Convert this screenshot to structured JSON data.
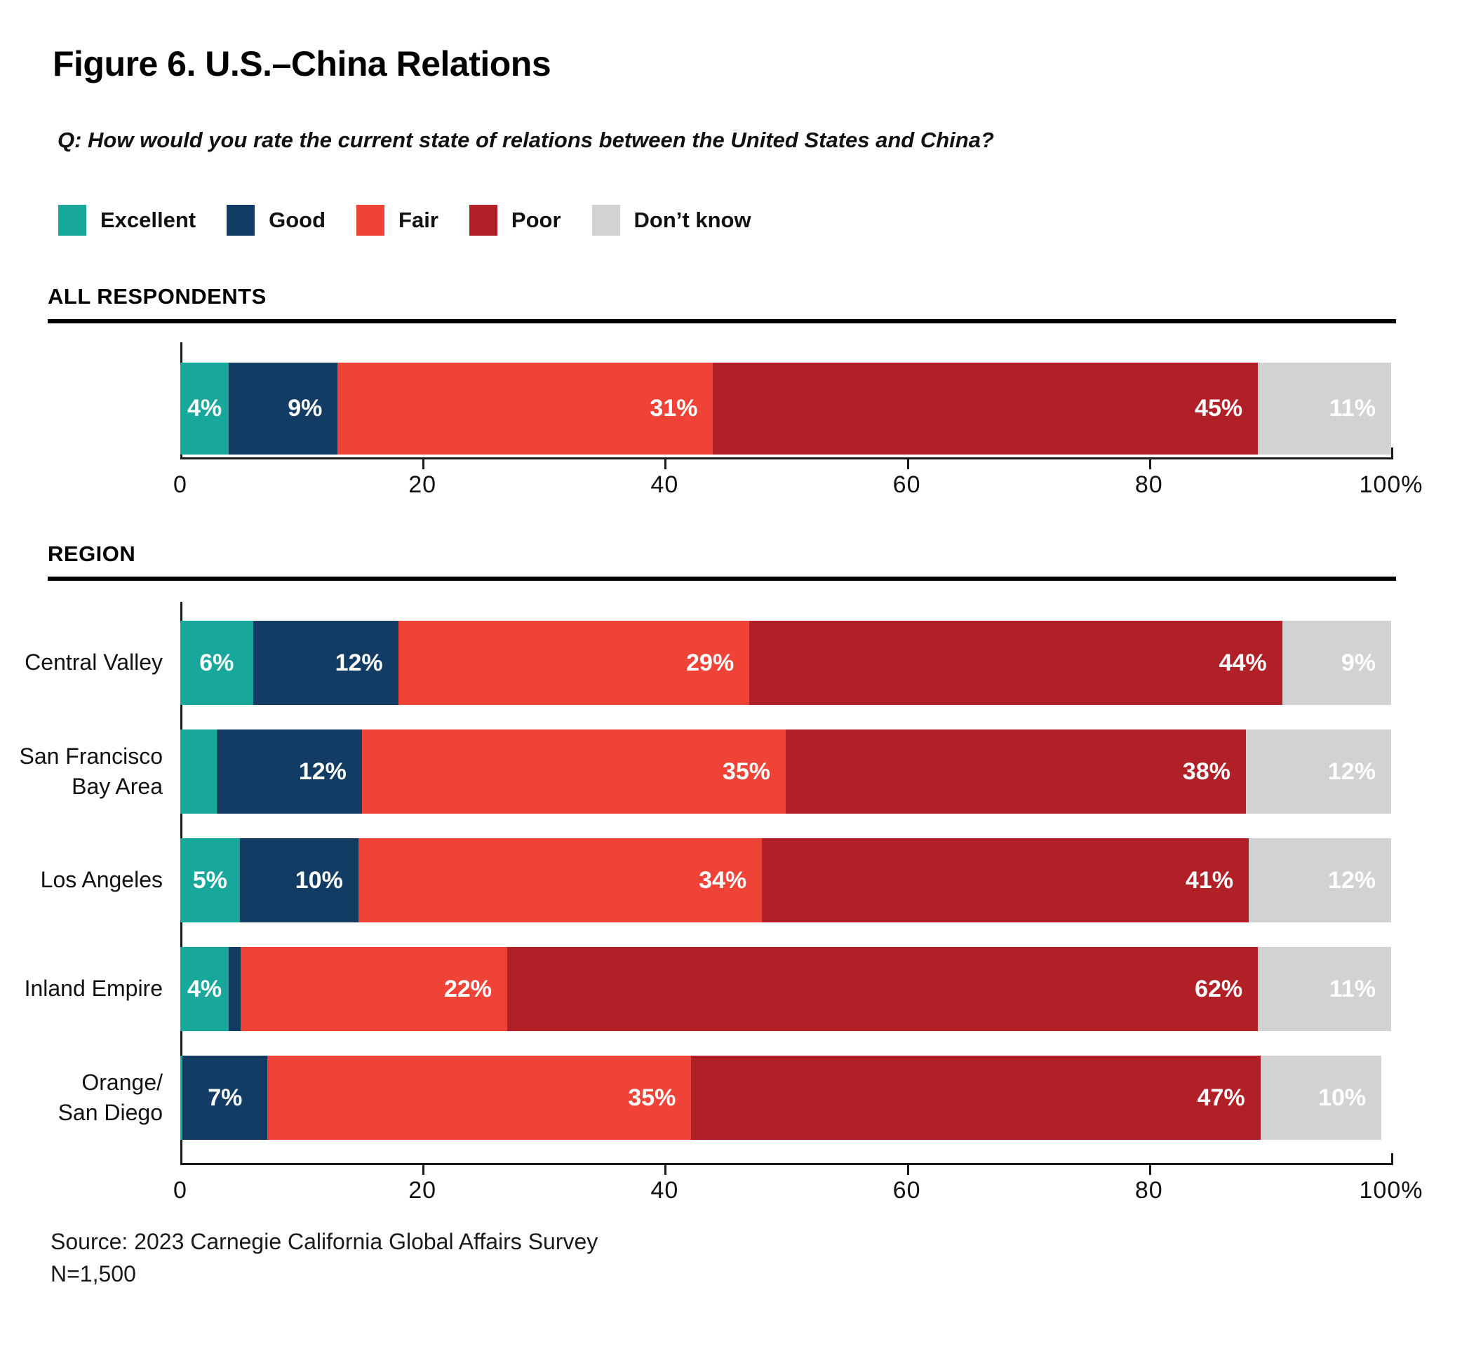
{
  "title": "Figure 6. U.S.–China Relations",
  "question": "Q: How would you rate the current state of relations between the United States and China?",
  "source_line1": "Source: 2023 Carnegie California Global Affairs Survey",
  "source_line2": "N=1,500",
  "chart_data": {
    "type": "bar",
    "orientation": "horizontal-stacked",
    "title": "Figure 6. U.S.–China Relations",
    "question": "Q: How would you rate the current state of relations between the United States and China?",
    "legend": [
      "Excellent",
      "Good",
      "Fair",
      "Poor",
      "Don’t know"
    ],
    "colors": [
      "#17A79B",
      "#123C63",
      "#EF4338",
      "#B02026",
      "#D2D2D2"
    ],
    "xlim": [
      0,
      100
    ],
    "x_ticks": [
      "0",
      "20",
      "40",
      "60",
      "80",
      "100%"
    ],
    "grid": false,
    "legend_position": "top-left",
    "sections": [
      {
        "header": "ALL RESPONDENTS",
        "rows": [
          {
            "label": "",
            "values": [
              4,
              9,
              31,
              45,
              11
            ],
            "display": [
              "4%",
              "9%",
              "31%",
              "45%",
              "11%"
            ]
          }
        ]
      },
      {
        "header": "REGION",
        "rows": [
          {
            "label": "Central Valley",
            "values": [
              6,
              12,
              29,
              44,
              9
            ],
            "display": [
              "6%",
              "12%",
              "29%",
              "44%",
              "9%"
            ]
          },
          {
            "label": "San Francisco\nBay Area",
            "values": [
              3,
              12,
              35,
              38,
              12
            ],
            "display": [
              "",
              "12%",
              "35%",
              "38%",
              "12%"
            ]
          },
          {
            "label": "Los Angeles",
            "values": [
              5,
              10,
              34,
              41,
              12
            ],
            "display": [
              "5%",
              "10%",
              "34%",
              "41%",
              "12%"
            ]
          },
          {
            "label": "Inland Empire",
            "values": [
              4,
              1,
              22,
              62,
              11
            ],
            "display": [
              "4%",
              "",
              "22%",
              "62%",
              "11%"
            ]
          },
          {
            "label": "Orange/\nSan Diego",
            "values": [
              0.2,
              7,
              35,
              47,
              10
            ],
            "display": [
              "",
              "7%",
              "35%",
              "47%",
              "10%"
            ]
          }
        ]
      }
    ],
    "source": "Source: 2023 Carnegie California Global Affairs Survey",
    "n": "N=1,500"
  }
}
